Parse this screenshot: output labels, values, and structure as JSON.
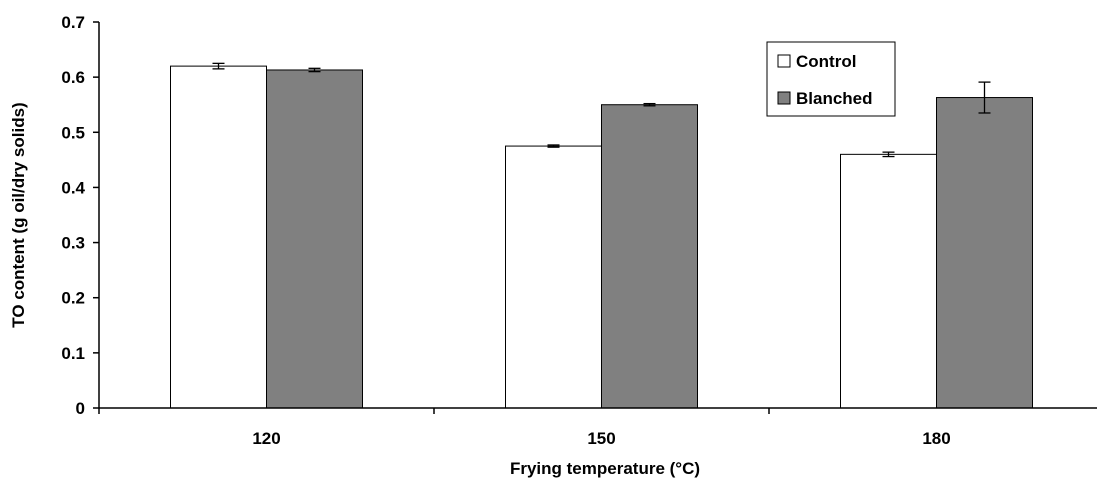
{
  "chart_data": {
    "type": "bar",
    "title": "",
    "xlabel": "Frying temperature (°C)",
    "ylabel": "TO content (g oil/dry solids)",
    "categories": [
      "120",
      "150",
      "180"
    ],
    "ylim": [
      0,
      0.7
    ],
    "yticks": [
      "0",
      "0.1",
      "0.2",
      "0.3",
      "0.4",
      "0.5",
      "0.6",
      "0.7"
    ],
    "grid": false,
    "legend_position": "top-right",
    "series": [
      {
        "name": "Control",
        "color": "#ffffff",
        "values": [
          0.62,
          0.475,
          0.46
        ],
        "errors": [
          0.005,
          0.002,
          0.004
        ]
      },
      {
        "name": "Blanched",
        "color": "#808080",
        "values": [
          0.613,
          0.55,
          0.563
        ],
        "errors": [
          0.003,
          0.002,
          0.028
        ]
      }
    ]
  }
}
